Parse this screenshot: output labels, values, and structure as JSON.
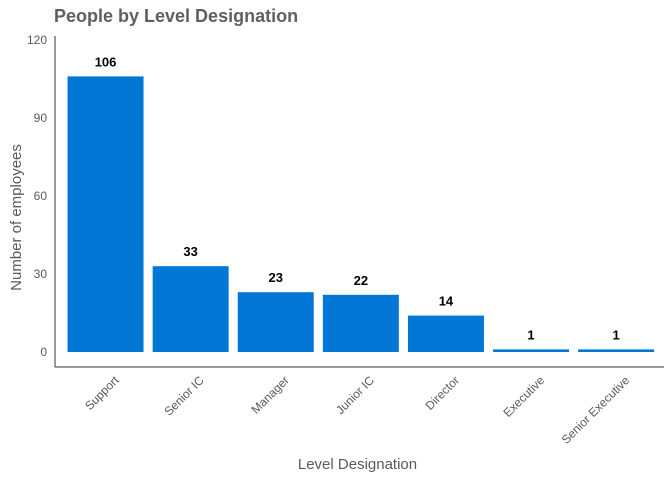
{
  "chart_data": {
    "type": "bar",
    "title": "People by Level Designation",
    "xlabel": "Level Designation",
    "ylabel": "Number of employees",
    "categories": [
      "Support",
      "Senior IC",
      "Manager",
      "Junior IC",
      "Director",
      "Executive",
      "Senior Executive"
    ],
    "values": [
      106,
      33,
      23,
      22,
      14,
      1,
      1
    ],
    "ylim": [
      0,
      120
    ],
    "yticks": [
      0,
      30,
      60,
      90,
      120
    ],
    "grid": false,
    "legend": "none",
    "bar_color": "#0277D6"
  }
}
